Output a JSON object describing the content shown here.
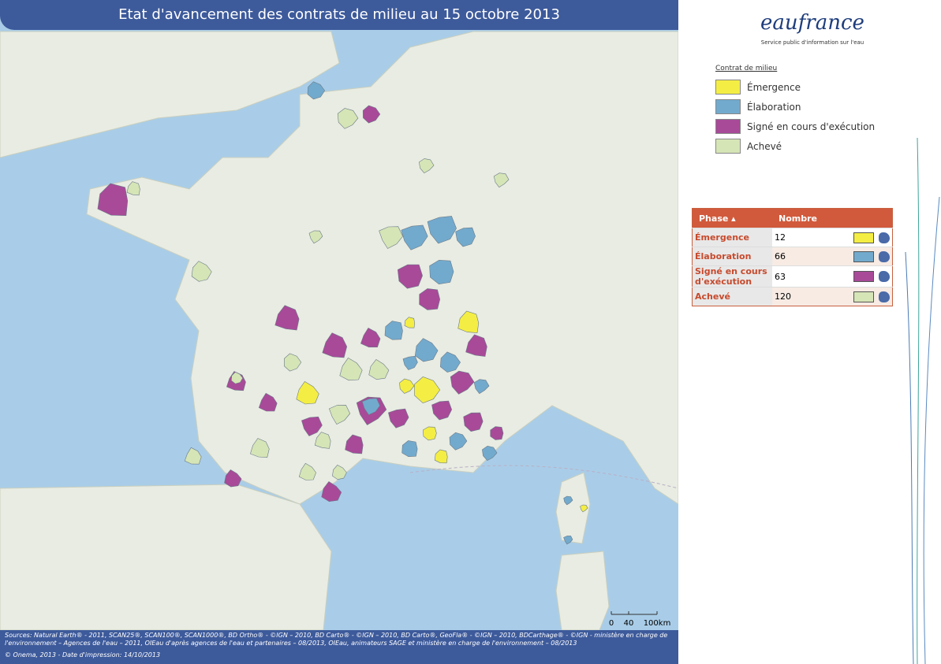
{
  "header": {
    "title": "Etat d'avancement des contrats de milieu au 15 octobre 2013"
  },
  "logo": {
    "name": "eaufrance",
    "tagline": "Service public d'information sur l'eau"
  },
  "legend": {
    "title": "Contrat de milieu",
    "items": [
      {
        "label": "Émergence",
        "color": "#f4ee44"
      },
      {
        "label": "Élaboration",
        "color": "#72aacd"
      },
      {
        "label": "Signé en cours d'exécution",
        "color": "#a84a98"
      },
      {
        "label": "Achevé",
        "color": "#d6e5b6"
      }
    ]
  },
  "table": {
    "columns": [
      "Phase",
      "Nombre"
    ],
    "rows": [
      [
        "Émergence",
        "12"
      ],
      [
        "Élaboration",
        "66"
      ],
      [
        "Signé en cours d'exécution",
        "63"
      ],
      [
        "Achevé",
        "120"
      ]
    ]
  },
  "scale": {
    "labels": [
      "0",
      "40",
      "100km"
    ]
  },
  "footer": {
    "sources": "Sources: Natural Earth® - 2011, SCAN25®, SCAN100®, SCAN1000®, BD Ortho® - ©IGN – 2010, BD Carto® - ©IGN – 2010, BD Carto®, GeoFla® - ©IGN – 2010, BDCarthage® - ©IGN - ministère en charge de l'environnement – Agences de l'eau – 2011, OIEau d'après agences de l'eau et partenaires – 08/2013, OIEau, animateurs SAGE et ministère en charge de l'environnement – 08/2013",
    "copyright": "© Onema, 2013 - Date d'impression: 14/10/2013"
  }
}
